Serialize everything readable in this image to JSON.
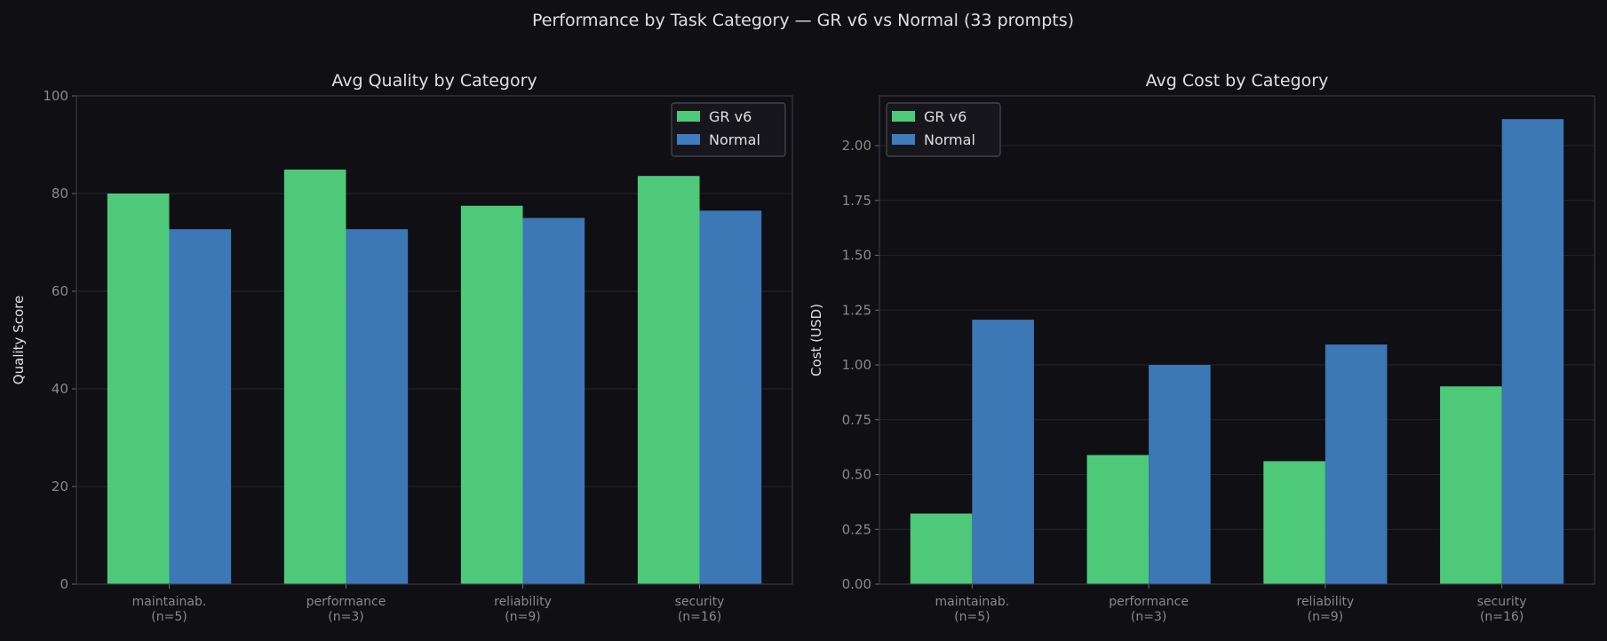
{
  "suptitle": "Performance by Task Category — GR v6 vs Normal (33 prompts)",
  "colors": {
    "background": "#0f0f14",
    "gr_v6": "#4ec97a",
    "normal": "#3f7dbf",
    "text": "#e0e0e0",
    "tick": "#8a8a8a"
  },
  "chart_data": [
    {
      "type": "bar",
      "title": "Avg Quality by Category",
      "xlabel": "",
      "ylabel": "Quality Score",
      "categories": [
        "maintainab.\n(n=5)",
        "performance\n(n=3)",
        "reliability\n(n=9)",
        "security\n(n=16)"
      ],
      "series": [
        {
          "name": "GR v6",
          "values": [
            80.0,
            84.9,
            77.5,
            83.6
          ]
        },
        {
          "name": "Normal",
          "values": [
            72.7,
            72.7,
            75.0,
            76.5
          ]
        }
      ],
      "ylim": [
        0,
        100
      ],
      "yticks": [
        "0",
        "20",
        "40",
        "60",
        "80",
        "100"
      ],
      "ytick_values": [
        0,
        20,
        40,
        60,
        80,
        100
      ],
      "grid": true,
      "legend": "top-right"
    },
    {
      "type": "bar",
      "title": "Avg Cost by Category",
      "xlabel": "",
      "ylabel": "Cost (USD)",
      "categories": [
        "maintainab.\n(n=5)",
        "performance\n(n=3)",
        "reliability\n(n=9)",
        "security\n(n=16)"
      ],
      "series": [
        {
          "name": "GR v6",
          "values": [
            0.322,
            0.589,
            0.561,
            0.902
          ]
        },
        {
          "name": "Normal",
          "values": [
            1.206,
            1.0,
            1.093,
            2.121
          ]
        }
      ],
      "ylim": [
        0,
        2.227
      ],
      "yticks": [
        "0.00",
        "0.25",
        "0.50",
        "0.75",
        "1.00",
        "1.25",
        "1.50",
        "1.75",
        "2.00"
      ],
      "ytick_values": [
        0,
        0.25,
        0.5,
        0.75,
        1.0,
        1.25,
        1.5,
        1.75,
        2.0
      ],
      "grid": true,
      "legend": "top-left"
    }
  ]
}
